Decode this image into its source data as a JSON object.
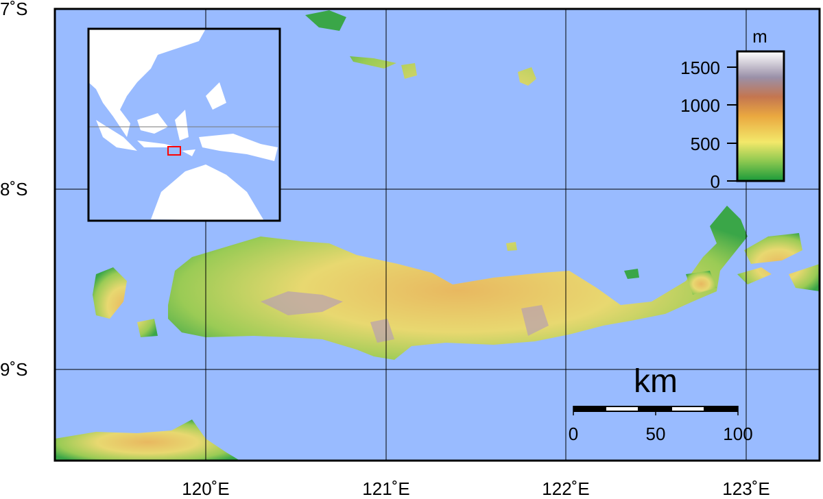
{
  "map": {
    "ocean_color": "#99bbff",
    "latitude_labels": [
      "7˚S",
      "8˚S",
      "9˚S"
    ],
    "longitude_labels": [
      "120˚E",
      "121˚E",
      "122˚E",
      "123˚E"
    ]
  },
  "legend": {
    "unit": "m",
    "ticks": [
      "0",
      "500",
      "1000",
      "1500"
    ],
    "colors": [
      "#1a9a3a",
      "#f3e86a",
      "#eaa840",
      "#c47650",
      "#9a90a8",
      "#ffffff"
    ]
  },
  "scale_bar": {
    "unit": "km",
    "ticks": [
      "0",
      "50",
      "100"
    ]
  },
  "inset": {
    "highlight_color": "#ff0000"
  }
}
